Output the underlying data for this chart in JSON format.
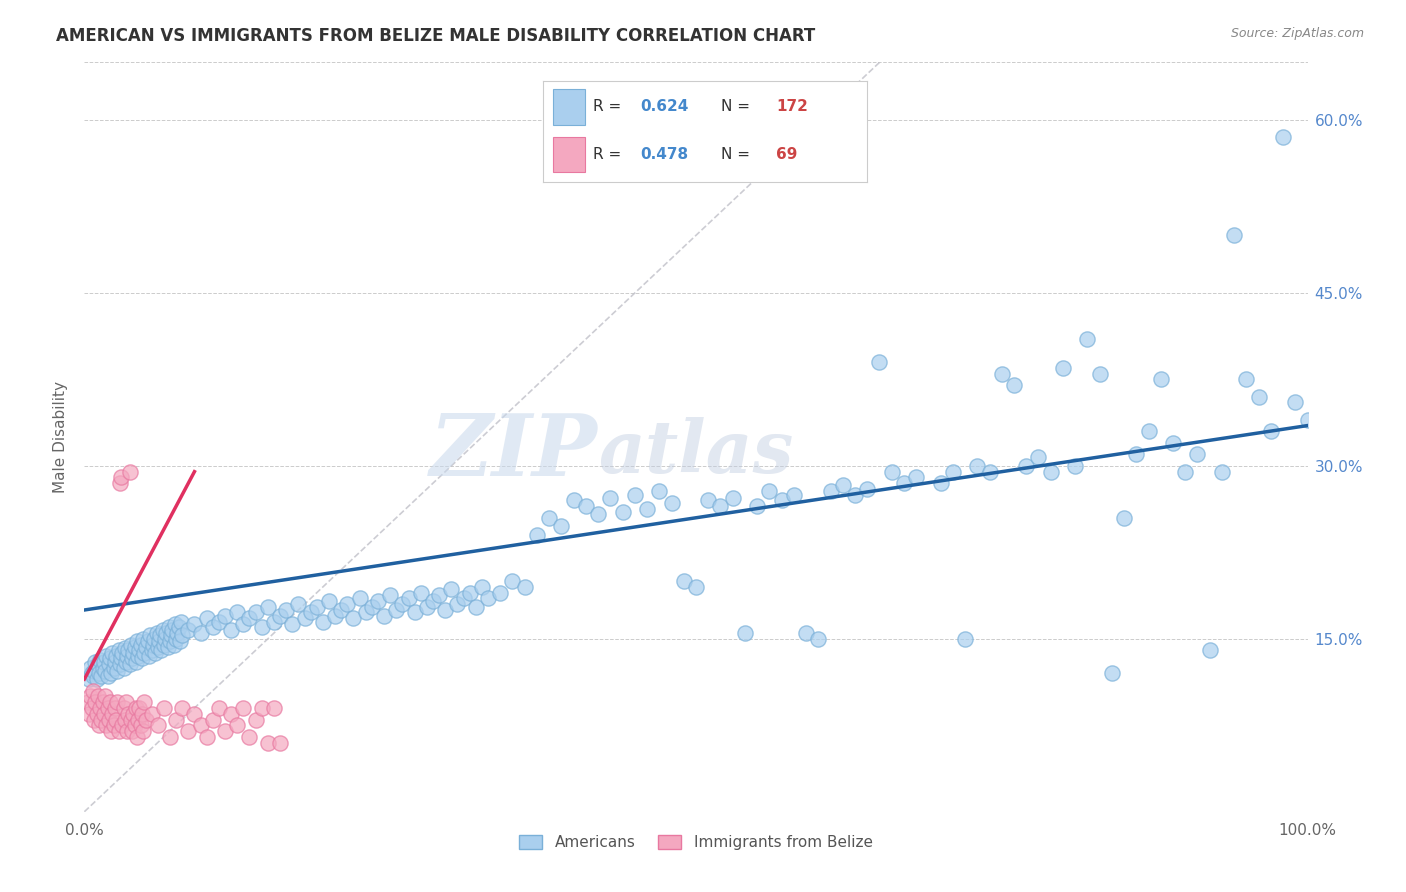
{
  "title": "AMERICAN VS IMMIGRANTS FROM BELIZE MALE DISABILITY CORRELATION CHART",
  "source": "Source: ZipAtlas.com",
  "ylabel": "Male Disability",
  "xlim": [
    0.0,
    1.0
  ],
  "ylim": [
    0.0,
    0.65
  ],
  "ytick_positions": [
    0.15,
    0.3,
    0.45,
    0.6
  ],
  "ytick_labels": [
    "15.0%",
    "30.0%",
    "45.0%",
    "60.0%"
  ],
  "legend_R_american": "0.624",
  "legend_N_american": "172",
  "legend_R_belize": "0.478",
  "legend_N_belize": "69",
  "american_color": "#aacfee",
  "belize_color": "#f4a8c0",
  "american_edge_color": "#7ab0d8",
  "belize_edge_color": "#e878a0",
  "american_line_color": "#2060a0",
  "belize_line_color": "#e03060",
  "diagonal_color": "#c0c0c8",
  "watermark_text": "ZIPatlas",
  "american_trend": [
    0.0,
    0.175,
    1.0,
    0.335
  ],
  "belize_trend": [
    0.0,
    0.115,
    0.09,
    0.295
  ],
  "diagonal": [
    0.0,
    0.0,
    0.65,
    0.65
  ],
  "american_dots": [
    [
      0.004,
      0.115
    ],
    [
      0.005,
      0.125
    ],
    [
      0.006,
      0.12
    ],
    [
      0.007,
      0.118
    ],
    [
      0.008,
      0.122
    ],
    [
      0.009,
      0.13
    ],
    [
      0.01,
      0.115
    ],
    [
      0.011,
      0.128
    ],
    [
      0.012,
      0.12
    ],
    [
      0.013,
      0.132
    ],
    [
      0.014,
      0.118
    ],
    [
      0.015,
      0.125
    ],
    [
      0.016,
      0.13
    ],
    [
      0.017,
      0.122
    ],
    [
      0.018,
      0.135
    ],
    [
      0.019,
      0.118
    ],
    [
      0.02,
      0.128
    ],
    [
      0.021,
      0.133
    ],
    [
      0.022,
      0.12
    ],
    [
      0.023,
      0.138
    ],
    [
      0.024,
      0.125
    ],
    [
      0.025,
      0.13
    ],
    [
      0.026,
      0.135
    ],
    [
      0.027,
      0.122
    ],
    [
      0.028,
      0.14
    ],
    [
      0.029,
      0.128
    ],
    [
      0.03,
      0.133
    ],
    [
      0.031,
      0.138
    ],
    [
      0.032,
      0.125
    ],
    [
      0.033,
      0.142
    ],
    [
      0.034,
      0.13
    ],
    [
      0.035,
      0.135
    ],
    [
      0.036,
      0.14
    ],
    [
      0.037,
      0.128
    ],
    [
      0.038,
      0.145
    ],
    [
      0.039,
      0.133
    ],
    [
      0.04,
      0.138
    ],
    [
      0.041,
      0.143
    ],
    [
      0.042,
      0.13
    ],
    [
      0.043,
      0.148
    ],
    [
      0.044,
      0.135
    ],
    [
      0.045,
      0.14
    ],
    [
      0.046,
      0.145
    ],
    [
      0.047,
      0.133
    ],
    [
      0.048,
      0.15
    ],
    [
      0.049,
      0.138
    ],
    [
      0.05,
      0.143
    ],
    [
      0.052,
      0.148
    ],
    [
      0.053,
      0.135
    ],
    [
      0.054,
      0.153
    ],
    [
      0.055,
      0.14
    ],
    [
      0.056,
      0.145
    ],
    [
      0.057,
      0.15
    ],
    [
      0.058,
      0.138
    ],
    [
      0.059,
      0.155
    ],
    [
      0.06,
      0.143
    ],
    [
      0.061,
      0.148
    ],
    [
      0.062,
      0.153
    ],
    [
      0.063,
      0.14
    ],
    [
      0.064,
      0.158
    ],
    [
      0.065,
      0.145
    ],
    [
      0.066,
      0.15
    ],
    [
      0.067,
      0.155
    ],
    [
      0.068,
      0.143
    ],
    [
      0.069,
      0.16
    ],
    [
      0.07,
      0.148
    ],
    [
      0.071,
      0.153
    ],
    [
      0.072,
      0.158
    ],
    [
      0.073,
      0.145
    ],
    [
      0.074,
      0.163
    ],
    [
      0.075,
      0.15
    ],
    [
      0.076,
      0.155
    ],
    [
      0.077,
      0.16
    ],
    [
      0.078,
      0.148
    ],
    [
      0.079,
      0.165
    ],
    [
      0.08,
      0.153
    ],
    [
      0.085,
      0.158
    ],
    [
      0.09,
      0.163
    ],
    [
      0.095,
      0.155
    ],
    [
      0.1,
      0.168
    ],
    [
      0.105,
      0.16
    ],
    [
      0.11,
      0.165
    ],
    [
      0.115,
      0.17
    ],
    [
      0.12,
      0.158
    ],
    [
      0.125,
      0.173
    ],
    [
      0.13,
      0.163
    ],
    [
      0.135,
      0.168
    ],
    [
      0.14,
      0.173
    ],
    [
      0.145,
      0.16
    ],
    [
      0.15,
      0.178
    ],
    [
      0.155,
      0.165
    ],
    [
      0.16,
      0.17
    ],
    [
      0.165,
      0.175
    ],
    [
      0.17,
      0.163
    ],
    [
      0.175,
      0.18
    ],
    [
      0.18,
      0.168
    ],
    [
      0.185,
      0.173
    ],
    [
      0.19,
      0.178
    ],
    [
      0.195,
      0.165
    ],
    [
      0.2,
      0.183
    ],
    [
      0.205,
      0.17
    ],
    [
      0.21,
      0.175
    ],
    [
      0.215,
      0.18
    ],
    [
      0.22,
      0.168
    ],
    [
      0.225,
      0.185
    ],
    [
      0.23,
      0.173
    ],
    [
      0.235,
      0.178
    ],
    [
      0.24,
      0.183
    ],
    [
      0.245,
      0.17
    ],
    [
      0.25,
      0.188
    ],
    [
      0.255,
      0.175
    ],
    [
      0.26,
      0.18
    ],
    [
      0.265,
      0.185
    ],
    [
      0.27,
      0.173
    ],
    [
      0.275,
      0.19
    ],
    [
      0.28,
      0.178
    ],
    [
      0.285,
      0.183
    ],
    [
      0.29,
      0.188
    ],
    [
      0.295,
      0.175
    ],
    [
      0.3,
      0.193
    ],
    [
      0.305,
      0.18
    ],
    [
      0.31,
      0.185
    ],
    [
      0.315,
      0.19
    ],
    [
      0.32,
      0.178
    ],
    [
      0.325,
      0.195
    ],
    [
      0.33,
      0.185
    ],
    [
      0.34,
      0.19
    ],
    [
      0.35,
      0.2
    ],
    [
      0.36,
      0.195
    ],
    [
      0.37,
      0.24
    ],
    [
      0.38,
      0.255
    ],
    [
      0.39,
      0.248
    ],
    [
      0.4,
      0.27
    ],
    [
      0.41,
      0.265
    ],
    [
      0.42,
      0.258
    ],
    [
      0.43,
      0.272
    ],
    [
      0.44,
      0.26
    ],
    [
      0.45,
      0.275
    ],
    [
      0.46,
      0.263
    ],
    [
      0.47,
      0.278
    ],
    [
      0.48,
      0.268
    ],
    [
      0.49,
      0.2
    ],
    [
      0.5,
      0.195
    ],
    [
      0.51,
      0.27
    ],
    [
      0.52,
      0.265
    ],
    [
      0.53,
      0.272
    ],
    [
      0.54,
      0.155
    ],
    [
      0.55,
      0.265
    ],
    [
      0.56,
      0.278
    ],
    [
      0.57,
      0.27
    ],
    [
      0.58,
      0.275
    ],
    [
      0.59,
      0.155
    ],
    [
      0.6,
      0.15
    ],
    [
      0.61,
      0.278
    ],
    [
      0.62,
      0.283
    ],
    [
      0.63,
      0.275
    ],
    [
      0.64,
      0.28
    ],
    [
      0.65,
      0.39
    ],
    [
      0.66,
      0.295
    ],
    [
      0.67,
      0.285
    ],
    [
      0.68,
      0.29
    ],
    [
      0.7,
      0.285
    ],
    [
      0.71,
      0.295
    ],
    [
      0.72,
      0.15
    ],
    [
      0.73,
      0.3
    ],
    [
      0.74,
      0.295
    ],
    [
      0.75,
      0.38
    ],
    [
      0.76,
      0.37
    ],
    [
      0.77,
      0.3
    ],
    [
      0.78,
      0.308
    ],
    [
      0.79,
      0.295
    ],
    [
      0.8,
      0.385
    ],
    [
      0.81,
      0.3
    ],
    [
      0.82,
      0.41
    ],
    [
      0.83,
      0.38
    ],
    [
      0.84,
      0.12
    ],
    [
      0.85,
      0.255
    ],
    [
      0.86,
      0.31
    ],
    [
      0.87,
      0.33
    ],
    [
      0.88,
      0.375
    ],
    [
      0.89,
      0.32
    ],
    [
      0.9,
      0.295
    ],
    [
      0.91,
      0.31
    ],
    [
      0.92,
      0.14
    ],
    [
      0.93,
      0.295
    ],
    [
      0.94,
      0.5
    ],
    [
      0.95,
      0.375
    ],
    [
      0.96,
      0.36
    ],
    [
      0.97,
      0.33
    ],
    [
      0.98,
      0.585
    ],
    [
      0.99,
      0.355
    ],
    [
      1.0,
      0.34
    ]
  ],
  "belize_dots": [
    [
      0.003,
      0.095
    ],
    [
      0.004,
      0.085
    ],
    [
      0.005,
      0.1
    ],
    [
      0.006,
      0.09
    ],
    [
      0.007,
      0.105
    ],
    [
      0.008,
      0.08
    ],
    [
      0.009,
      0.095
    ],
    [
      0.01,
      0.085
    ],
    [
      0.011,
      0.1
    ],
    [
      0.012,
      0.075
    ],
    [
      0.013,
      0.09
    ],
    [
      0.014,
      0.08
    ],
    [
      0.015,
      0.095
    ],
    [
      0.016,
      0.085
    ],
    [
      0.017,
      0.1
    ],
    [
      0.018,
      0.075
    ],
    [
      0.019,
      0.09
    ],
    [
      0.02,
      0.08
    ],
    [
      0.021,
      0.095
    ],
    [
      0.022,
      0.07
    ],
    [
      0.023,
      0.085
    ],
    [
      0.024,
      0.075
    ],
    [
      0.025,
      0.09
    ],
    [
      0.026,
      0.08
    ],
    [
      0.027,
      0.095
    ],
    [
      0.028,
      0.07
    ],
    [
      0.029,
      0.285
    ],
    [
      0.03,
      0.29
    ],
    [
      0.031,
      0.075
    ],
    [
      0.032,
      0.09
    ],
    [
      0.033,
      0.08
    ],
    [
      0.034,
      0.095
    ],
    [
      0.035,
      0.07
    ],
    [
      0.036,
      0.085
    ],
    [
      0.037,
      0.295
    ],
    [
      0.038,
      0.08
    ],
    [
      0.039,
      0.07
    ],
    [
      0.04,
      0.085
    ],
    [
      0.041,
      0.075
    ],
    [
      0.042,
      0.09
    ],
    [
      0.043,
      0.065
    ],
    [
      0.044,
      0.08
    ],
    [
      0.045,
      0.09
    ],
    [
      0.046,
      0.075
    ],
    [
      0.047,
      0.085
    ],
    [
      0.048,
      0.07
    ],
    [
      0.049,
      0.095
    ],
    [
      0.05,
      0.08
    ],
    [
      0.055,
      0.085
    ],
    [
      0.06,
      0.075
    ],
    [
      0.065,
      0.09
    ],
    [
      0.07,
      0.065
    ],
    [
      0.075,
      0.08
    ],
    [
      0.08,
      0.09
    ],
    [
      0.085,
      0.07
    ],
    [
      0.09,
      0.085
    ],
    [
      0.095,
      0.075
    ],
    [
      0.1,
      0.065
    ],
    [
      0.105,
      0.08
    ],
    [
      0.11,
      0.09
    ],
    [
      0.115,
      0.07
    ],
    [
      0.12,
      0.085
    ],
    [
      0.125,
      0.075
    ],
    [
      0.13,
      0.09
    ],
    [
      0.135,
      0.065
    ],
    [
      0.14,
      0.08
    ],
    [
      0.145,
      0.09
    ],
    [
      0.15,
      0.06
    ],
    [
      0.155,
      0.09
    ],
    [
      0.16,
      0.06
    ]
  ]
}
